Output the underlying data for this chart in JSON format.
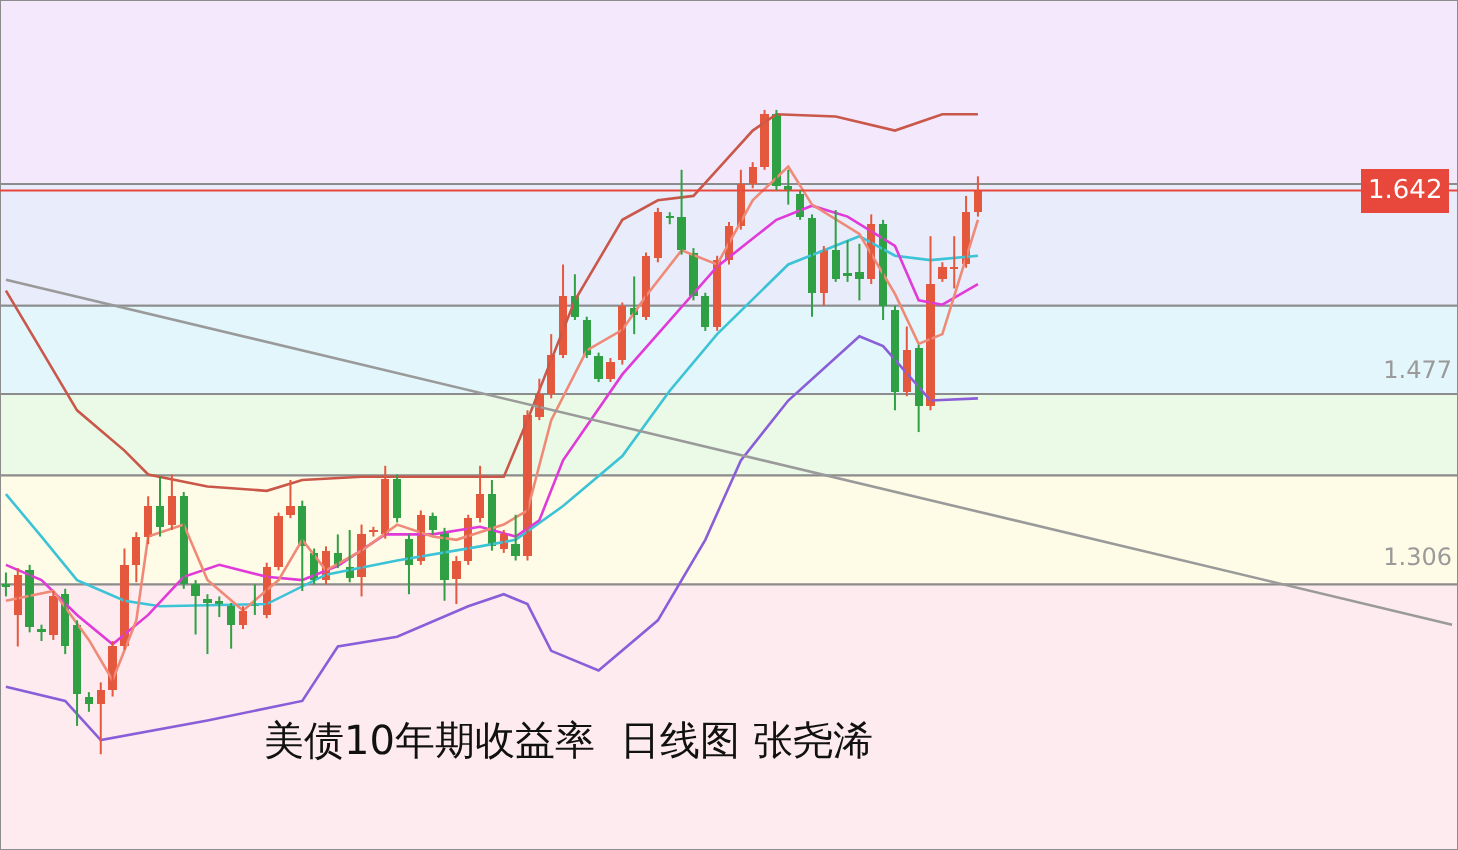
{
  "chart_data": {
    "type": "candlestick",
    "title": "美债10年期收益率  日线图 张尧浠",
    "categories": [
      null,
      null,
      null,
      null,
      null,
      null,
      null,
      null,
      null,
      null,
      null,
      null,
      null,
      null,
      null,
      null,
      null,
      null,
      null,
      null,
      null,
      null,
      null,
      null,
      null,
      null,
      null,
      null,
      null,
      null,
      null,
      null,
      null,
      null,
      null,
      null,
      null,
      null,
      null,
      null,
      null,
      null,
      null,
      null,
      null,
      null,
      null,
      null,
      null,
      null,
      null,
      null,
      null,
      null,
      null,
      null,
      null,
      null,
      null,
      null,
      null,
      null,
      null,
      null,
      null,
      null,
      null,
      null,
      null,
      null,
      null,
      null,
      null,
      null,
      null,
      null,
      null,
      null,
      null,
      null,
      null,
      null,
      null,
      null,
      null,
      null,
      null,
      null,
      null,
      null,
      null,
      null,
      null,
      null,
      null,
      null,
      null,
      null,
      null,
      null,
      null,
      null,
      null,
      null,
      null,
      null,
      null,
      null,
      null,
      null,
      null,
      null,
      null,
      null,
      null,
      null,
      null,
      null,
      null,
      null,
      null,
      null,
      null
    ],
    "ohlc": [
      [
        1.28,
        1.291,
        1.269,
        1.278
      ],
      [
        1.252,
        1.295,
        1.223,
        1.289
      ],
      [
        1.293,
        1.298,
        1.236,
        1.241
      ],
      [
        1.239,
        1.243,
        1.228,
        1.236
      ],
      [
        1.234,
        1.274,
        1.229,
        1.269
      ],
      [
        1.271,
        1.276,
        1.216,
        1.223
      ],
      [
        1.243,
        1.247,
        1.15,
        1.179
      ],
      [
        1.177,
        1.181,
        1.163,
        1.17
      ],
      [
        1.17,
        1.19,
        1.124,
        1.183
      ],
      [
        1.183,
        1.228,
        1.177,
        1.223
      ],
      [
        1.223,
        1.313,
        1.22,
        1.298
      ],
      [
        1.298,
        1.328,
        1.282,
        1.324
      ],
      [
        1.324,
        1.361,
        1.317,
        1.352
      ],
      [
        1.352,
        1.379,
        1.324,
        1.333
      ],
      [
        1.335,
        1.381,
        1.33,
        1.361
      ],
      [
        1.361,
        1.365,
        1.276,
        1.28
      ],
      [
        1.28,
        1.284,
        1.234,
        1.269
      ],
      [
        1.267,
        1.271,
        1.216,
        1.263
      ],
      [
        1.265,
        1.269,
        1.25,
        1.26
      ],
      [
        1.26,
        1.263,
        1.221,
        1.243
      ],
      [
        1.243,
        1.26,
        1.239,
        1.256
      ],
      [
        1.262,
        1.28,
        1.252,
        1.26
      ],
      [
        1.252,
        1.3,
        1.249,
        1.296
      ],
      [
        1.296,
        1.346,
        1.293,
        1.343
      ],
      [
        1.344,
        1.376,
        1.341,
        1.352
      ],
      [
        1.352,
        1.357,
        1.274,
        1.315
      ],
      [
        1.309,
        1.313,
        1.28,
        1.284
      ],
      [
        1.284,
        1.315,
        1.28,
        1.311
      ],
      [
        1.309,
        1.326,
        1.295,
        1.298
      ],
      [
        1.296,
        1.33,
        1.282,
        1.286
      ],
      [
        1.287,
        1.335,
        1.269,
        1.326
      ],
      [
        1.328,
        1.333,
        1.324,
        1.33
      ],
      [
        1.326,
        1.389,
        1.322,
        1.377
      ],
      [
        1.377,
        1.381,
        1.337,
        1.341
      ],
      [
        1.322,
        1.326,
        1.271,
        1.298
      ],
      [
        1.302,
        1.348,
        1.298,
        1.344
      ],
      [
        1.343,
        1.346,
        1.326,
        1.33
      ],
      [
        1.328,
        1.332,
        1.265,
        1.284
      ],
      [
        1.285,
        1.306,
        1.262,
        1.302
      ],
      [
        1.302,
        1.344,
        1.298,
        1.341
      ],
      [
        1.341,
        1.389,
        1.337,
        1.363
      ],
      [
        1.363,
        1.376,
        1.311,
        1.315
      ],
      [
        1.313,
        1.33,
        1.309,
        1.326
      ],
      [
        1.317,
        1.344,
        1.302,
        1.306
      ],
      [
        1.306,
        1.44,
        1.302,
        1.436
      ],
      [
        1.434,
        1.469,
        1.431,
        1.455
      ],
      [
        1.455,
        1.51,
        1.451,
        1.491
      ],
      [
        1.491,
        1.574,
        1.488,
        1.545
      ],
      [
        1.545,
        1.565,
        1.523,
        1.526
      ],
      [
        1.523,
        1.526,
        1.488,
        1.491
      ],
      [
        1.49,
        1.493,
        1.466,
        1.469
      ],
      [
        1.469,
        1.488,
        1.466,
        1.484
      ],
      [
        1.486,
        1.539,
        1.482,
        1.536
      ],
      [
        1.534,
        1.563,
        1.51,
        1.528
      ],
      [
        1.526,
        1.585,
        1.523,
        1.582
      ],
      [
        1.58,
        1.626,
        1.576,
        1.622
      ],
      [
        1.619,
        1.622,
        1.611,
        1.617
      ],
      [
        1.618,
        1.661,
        1.583,
        1.587
      ],
      [
        1.585,
        1.589,
        1.541,
        1.545
      ],
      [
        1.545,
        1.548,
        1.513,
        1.517
      ],
      [
        1.517,
        1.582,
        1.513,
        1.578
      ],
      [
        1.578,
        1.613,
        1.574,
        1.609
      ],
      [
        1.609,
        1.661,
        1.606,
        1.648
      ],
      [
        1.648,
        1.668,
        1.644,
        1.664
      ],
      [
        1.664,
        1.716,
        1.661,
        1.712
      ],
      [
        1.712,
        1.716,
        1.642,
        1.646
      ],
      [
        1.646,
        1.661,
        1.629,
        1.642
      ],
      [
        1.639,
        1.642,
        1.615,
        1.618
      ],
      [
        1.617,
        1.62,
        1.526,
        1.548
      ],
      [
        1.548,
        1.591,
        1.536,
        1.587
      ],
      [
        1.587,
        1.624,
        1.558,
        1.561
      ],
      [
        1.566,
        1.596,
        1.558,
        1.563
      ],
      [
        1.567,
        1.593,
        1.541,
        1.561
      ],
      [
        1.561,
        1.62,
        1.556,
        1.611
      ],
      [
        1.611,
        1.615,
        1.523,
        1.536
      ],
      [
        1.532,
        1.536,
        1.44,
        1.457
      ],
      [
        1.457,
        1.517,
        1.453,
        1.495
      ],
      [
        1.497,
        1.5,
        1.42,
        1.444
      ],
      [
        1.444,
        1.6,
        1.44,
        1.556
      ],
      [
        1.561,
        1.576,
        1.558,
        1.572
      ],
      [
        1.57,
        1.6,
        1.552,
        1.572
      ],
      [
        1.574,
        1.637,
        1.571,
        1.622
      ],
      [
        1.622,
        1.655,
        1.618,
        1.642
      ],
      null,
      null,
      null,
      null,
      null,
      null,
      null,
      null,
      null,
      null,
      null,
      null,
      null,
      null,
      null,
      null,
      null,
      null,
      null,
      null,
      null,
      null,
      null,
      null,
      null,
      null,
      null,
      null,
      null,
      null,
      null,
      null,
      null,
      null,
      null,
      null,
      null,
      null,
      null,
      null
    ],
    "series": [
      {
        "type": "line",
        "color": "#c9574a",
        "values": [
          1.55,
          null,
          null,
          1.495,
          null,
          null,
          1.44,
          null,
          null,
          null,
          1.403,
          null,
          1.381,
          null,
          null,
          null,
          null,
          1.37,
          null,
          null,
          null,
          null,
          1.366,
          null,
          null,
          1.376,
          null,
          null,
          null,
          null,
          1.379,
          null,
          null,
          null,
          null,
          null,
          null,
          1.379,
          null,
          null,
          null,
          null,
          1.379,
          null,
          1.431,
          null,
          null,
          null,
          1.541,
          null,
          null,
          null,
          1.615,
          null,
          null,
          1.633,
          null,
          null,
          1.637,
          null,
          1.661,
          null,
          null,
          1.697,
          null,
          1.712,
          null,
          null,
          null,
          null,
          1.71,
          null,
          null,
          null,
          null,
          1.697,
          null,
          null,
          null,
          1.712,
          null,
          null,
          1.712,
          null,
          null,
          null,
          null,
          null,
          null,
          null,
          null,
          null,
          null,
          null,
          null,
          null,
          null,
          null,
          null,
          null,
          null,
          null,
          null,
          null,
          null,
          null,
          null,
          null,
          null,
          null,
          null,
          null,
          null,
          null,
          null,
          null,
          null,
          null,
          null,
          null,
          null,
          null,
          null
        ]
      },
      {
        "type": "line",
        "color": "#3cc3d6",
        "values": [
          1.363,
          null,
          null,
          1.324,
          null,
          null,
          1.284,
          null,
          null,
          null,
          1.265,
          null,
          null,
          1.26,
          null,
          null,
          null,
          null,
          null,
          null,
          null,
          null,
          1.262,
          null,
          null,
          null,
          null,
          1.289,
          null,
          null,
          null,
          null,
          null,
          1.302,
          null,
          null,
          null,
          null,
          null,
          null,
          1.315,
          null,
          null,
          1.321,
          null,
          null,
          null,
          1.352,
          null,
          null,
          null,
          null,
          1.398,
          null,
          null,
          null,
          1.458,
          null,
          null,
          null,
          1.51,
          null,
          null,
          null,
          null,
          null,
          1.574,
          null,
          null,
          null,
          null,
          null,
          1.6,
          null,
          null,
          1.582,
          null,
          null,
          1.578,
          null,
          null,
          null,
          1.582,
          null,
          null,
          null,
          null,
          null,
          null,
          null,
          null,
          null,
          null,
          null,
          null,
          null,
          null,
          null,
          null,
          null,
          null,
          null,
          null,
          null,
          null,
          null,
          null,
          null,
          null,
          null,
          null,
          null,
          null,
          null,
          null,
          null,
          null,
          null,
          null,
          null,
          null,
          null,
          null
        ]
      },
      {
        "type": "line",
        "color": "#8a5ed8",
        "values": [
          1.186,
          null,
          null,
          null,
          null,
          1.173,
          null,
          null,
          1.137,
          null,
          null,
          null,
          null,
          null,
          null,
          null,
          null,
          1.155,
          null,
          null,
          null,
          null,
          null,
          null,
          null,
          1.173,
          null,
          null,
          1.223,
          null,
          null,
          null,
          null,
          1.232,
          null,
          null,
          null,
          null,
          null,
          1.26,
          null,
          null,
          1.271,
          null,
          1.262,
          null,
          1.219,
          null,
          null,
          null,
          1.201,
          null,
          null,
          null,
          null,
          1.247,
          null,
          null,
          null,
          1.321,
          null,
          null,
          1.394,
          null,
          null,
          null,
          1.449,
          null,
          null,
          null,
          null,
          null,
          1.508,
          null,
          1.499,
          null,
          null,
          null,
          1.449,
          null,
          null,
          null,
          1.451,
          null,
          null,
          null,
          null,
          null,
          null,
          null,
          null,
          null,
          null,
          null,
          null,
          null,
          null,
          null,
          null,
          null,
          null,
          null,
          null,
          null,
          null,
          null,
          null,
          null,
          null,
          null,
          null,
          null,
          null,
          null,
          null,
          null,
          null,
          null,
          null,
          null,
          null,
          null,
          null
        ]
      },
      {
        "type": "line",
        "color": "#e03ad8",
        "values": [
          1.298,
          null,
          null,
          1.284,
          null,
          null,
          1.252,
          null,
          null,
          1.225,
          null,
          null,
          1.252,
          null,
          null,
          1.287,
          null,
          null,
          1.298,
          null,
          null,
          null,
          1.287,
          null,
          null,
          1.284,
          null,
          null,
          1.297,
          null,
          null,
          null,
          1.326,
          null,
          null,
          null,
          1.326,
          null,
          null,
          null,
          1.333,
          null,
          null,
          1.324,
          null,
          1.339,
          null,
          1.394,
          null,
          null,
          null,
          null,
          1.473,
          null,
          null,
          null,
          null,
          null,
          null,
          null,
          1.572,
          null,
          null,
          null,
          null,
          1.615,
          null,
          null,
          1.628,
          null,
          null,
          1.618,
          null,
          null,
          null,
          1.591,
          null,
          1.541,
          null,
          1.537,
          null,
          null,
          1.556,
          null,
          null,
          null,
          null,
          null,
          null,
          null,
          null,
          null,
          null,
          null,
          null,
          null,
          null,
          null,
          null,
          null,
          null,
          null,
          null,
          null,
          null,
          null,
          null,
          null,
          null,
          null,
          null,
          null,
          null,
          null,
          null,
          null,
          null,
          null,
          null,
          null,
          null,
          null,
          null
        ]
      },
      {
        "type": "line",
        "color": "#f08a78",
        "values": [
          1.265,
          null,
          null,
          null,
          1.274,
          null,
          null,
          1.229,
          null,
          1.192,
          null,
          1.247,
          1.324,
          null,
          null,
          1.335,
          null,
          1.284,
          null,
          null,
          1.256,
          null,
          null,
          1.284,
          null,
          1.321,
          null,
          1.293,
          null,
          null,
          1.311,
          null,
          null,
          1.335,
          null,
          null,
          1.324,
          null,
          1.321,
          null,
          null,
          null,
          1.335,
          null,
          1.348,
          null,
          1.431,
          null,
          null,
          1.495,
          null,
          null,
          1.514,
          null,
          1.545,
          null,
          null,
          1.587,
          null,
          null,
          1.574,
          null,
          null,
          1.633,
          null,
          null,
          1.664,
          null,
          1.629,
          null,
          null,
          null,
          1.602,
          null,
          null,
          1.547,
          null,
          1.501,
          null,
          1.51,
          null,
          null,
          1.615,
          null,
          null,
          null,
          null,
          null,
          null,
          null,
          null,
          null,
          null,
          null,
          null,
          null,
          null,
          null,
          null,
          null,
          null,
          null,
          null,
          null,
          null,
          null,
          null,
          null,
          null,
          null,
          null,
          null,
          null,
          null,
          null,
          null,
          null,
          null,
          null,
          null,
          null,
          null,
          null
        ]
      },
      {
        "type": "line",
        "color": "#9a9a9a",
        "values": [
          1.56,
          null,
          null,
          null,
          null,
          null,
          null,
          null,
          null,
          null,
          null,
          null,
          null,
          null,
          null,
          null,
          null,
          null,
          null,
          null,
          null,
          null,
          null,
          null,
          null,
          null,
          null,
          null,
          null,
          null,
          null,
          null,
          null,
          null,
          null,
          null,
          null,
          null,
          null,
          null,
          null,
          null,
          null,
          null,
          null,
          null,
          null,
          null,
          null,
          null,
          null,
          null,
          null,
          null,
          null,
          null,
          null,
          null,
          null,
          null,
          null,
          null,
          null,
          null,
          null,
          null,
          null,
          null,
          null,
          null,
          null,
          null,
          null,
          null,
          null,
          null,
          null,
          null,
          null,
          null,
          null,
          null,
          null,
          null,
          null,
          null,
          null,
          null,
          null,
          null,
          null,
          null,
          null,
          null,
          null,
          null,
          null,
          null,
          null,
          null,
          null,
          null,
          null,
          null,
          null,
          null,
          null,
          null,
          null,
          null,
          null,
          null,
          null,
          null,
          null,
          null,
          null,
          null,
          null,
          null,
          null,
          null,
          1.243
        ]
      }
    ],
    "ylim": [
      1.036,
      1.817
    ],
    "yticks": [
      1.306,
      1.477
    ],
    "tick_labels": "y",
    "ref_lines": [
      {
        "axis": "y",
        "value": 1.642,
        "label": "1.642",
        "color": "#e8473c"
      }
    ],
    "bands": [
      {
        "axis": "y",
        "from": 1.648,
        "to": 1.817,
        "color": "#f3e8fc"
      },
      {
        "axis": "y",
        "from": 1.536,
        "to": 1.648,
        "color": "#e9ecfb"
      },
      {
        "axis": "y",
        "from": 1.455,
        "to": 1.536,
        "color": "#e2f6fb"
      },
      {
        "axis": "y",
        "from": 1.38,
        "to": 1.455,
        "color": "#eafae6"
      },
      {
        "axis": "y",
        "from": 1.28,
        "to": 1.38,
        "color": "#fefbe6"
      },
      {
        "axis": "y",
        "from": 1.036,
        "to": 1.28,
        "color": "#fdebef"
      }
    ]
  }
}
